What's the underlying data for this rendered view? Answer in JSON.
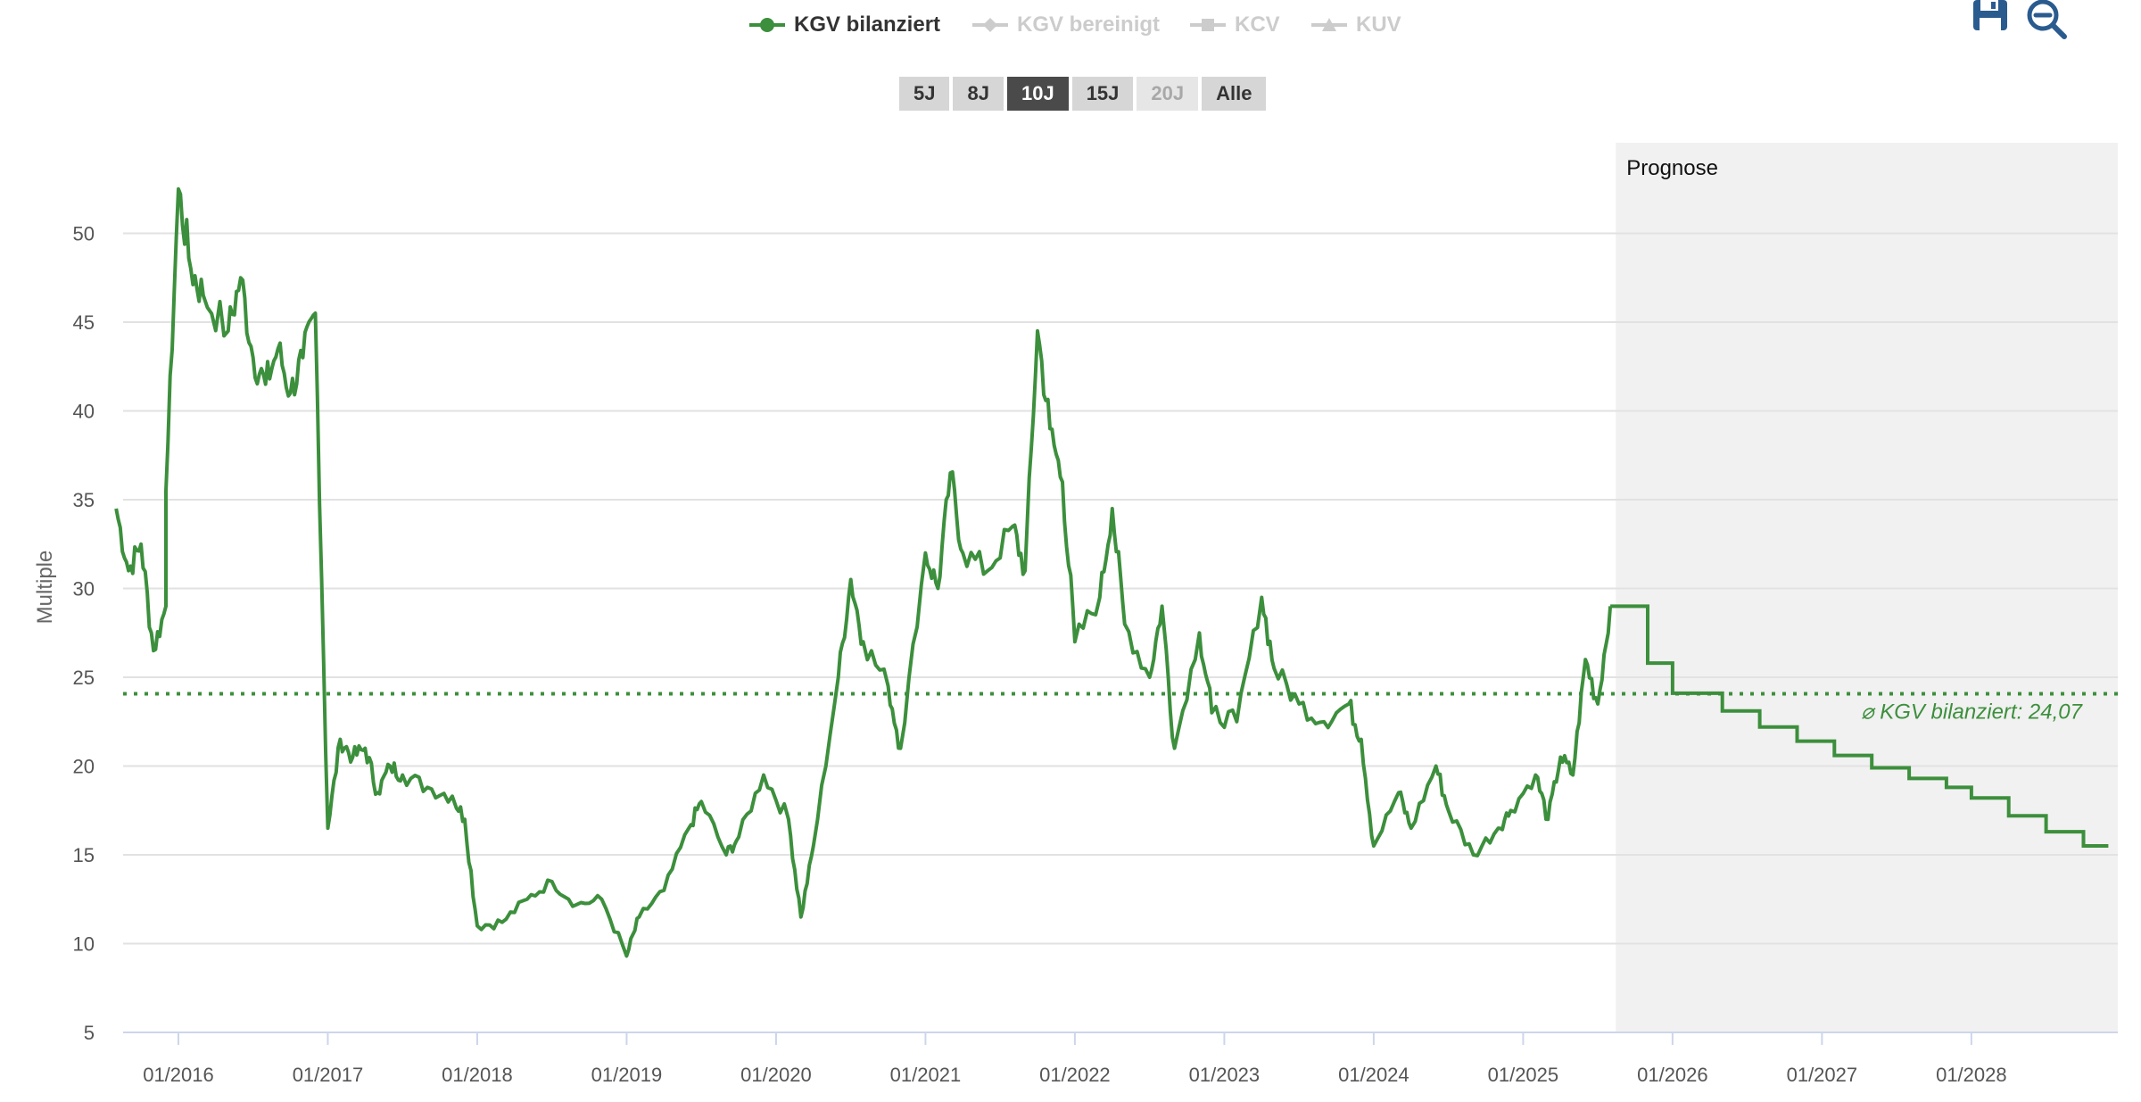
{
  "legend": {
    "items": [
      {
        "label": "KGV bilanziert",
        "active": true,
        "icon": "circle-marker-icon"
      },
      {
        "label": "KGV bereinigt",
        "active": false,
        "icon": "diamond-marker-icon"
      },
      {
        "label": "KCV",
        "active": false,
        "icon": "square-marker-icon"
      },
      {
        "label": "KUV",
        "active": false,
        "icon": "triangle-marker-icon"
      }
    ]
  },
  "range_buttons": [
    {
      "label": "5J",
      "state": "normal"
    },
    {
      "label": "8J",
      "state": "normal"
    },
    {
      "label": "10J",
      "state": "selected"
    },
    {
      "label": "15J",
      "state": "normal"
    },
    {
      "label": "20J",
      "state": "disabled"
    },
    {
      "label": "Alle",
      "state": "normal"
    }
  ],
  "tools": [
    {
      "name": "save-icon"
    },
    {
      "name": "zoom-out-icon"
    }
  ],
  "colors": {
    "series": "#3c8f3c",
    "forecast_band": "#f1f1f1",
    "grid": "#e2e2e2",
    "axis": "#ccd6eb",
    "button_selected": "#4a4a4a",
    "button_normal": "#d6d6d6"
  },
  "chart_data": {
    "type": "line",
    "ylabel": "Multiple",
    "ylim": [
      5,
      55
    ],
    "yticks": [
      5,
      10,
      15,
      20,
      25,
      30,
      35,
      40,
      45,
      50
    ],
    "xlim": [
      2015.63,
      2028.98
    ],
    "xticks": [
      "01/2016",
      "01/2017",
      "01/2018",
      "01/2019",
      "01/2020",
      "01/2021",
      "01/2022",
      "01/2023",
      "01/2024",
      "01/2025",
      "01/2026",
      "01/2027",
      "01/2028"
    ],
    "grid": true,
    "legend_position": "top-center",
    "forecast": {
      "label": "Prognose",
      "start": 2025.62
    },
    "average": {
      "label": "⌀ KGV bilanziert: 24,07",
      "value": 24.07
    },
    "series": [
      {
        "name": "KGV bilanziert",
        "historical": [
          [
            "2015-08",
            34.5
          ],
          [
            "2015-09",
            31.0
          ],
          [
            "2015-10",
            32.5
          ],
          [
            "2015-11",
            26.5
          ],
          [
            "2015-12",
            29.0
          ],
          [
            "2015-12",
            35.5
          ],
          [
            "2016-01",
            52.5
          ],
          [
            "2016-02",
            48.0
          ],
          [
            "2016-03",
            46.5
          ],
          [
            "2016-05",
            44.5
          ],
          [
            "2016-06",
            47.5
          ],
          [
            "2016-07",
            43.0
          ],
          [
            "2016-08",
            41.5
          ],
          [
            "2016-09",
            43.5
          ],
          [
            "2016-10",
            41.0
          ],
          [
            "2016-11",
            43.0
          ],
          [
            "2016-12",
            45.5
          ],
          [
            "2017-01",
            16.5
          ],
          [
            "2017-02",
            21.5
          ],
          [
            "2017-03",
            20.5
          ],
          [
            "2017-04",
            21.0
          ],
          [
            "2017-05",
            18.5
          ],
          [
            "2017-06",
            20.0
          ],
          [
            "2017-07",
            19.5
          ],
          [
            "2017-09",
            18.8
          ],
          [
            "2017-11",
            18.3
          ],
          [
            "2017-12",
            17.0
          ],
          [
            "2018-01",
            11.0
          ],
          [
            "2018-03",
            11.2
          ],
          [
            "2018-05",
            12.5
          ],
          [
            "2018-07",
            13.5
          ],
          [
            "2018-09",
            12.2
          ],
          [
            "2018-11",
            12.5
          ],
          [
            "2019-01",
            9.3
          ],
          [
            "2019-02",
            11.5
          ],
          [
            "2019-04",
            13.0
          ],
          [
            "2019-06",
            16.5
          ],
          [
            "2019-07",
            18.0
          ],
          [
            "2019-09",
            15.0
          ],
          [
            "2019-10",
            16.0
          ],
          [
            "2019-12",
            19.5
          ],
          [
            "2020-02",
            17.0
          ],
          [
            "2020-03",
            11.5
          ],
          [
            "2020-04",
            15.5
          ],
          [
            "2020-06",
            25.0
          ],
          [
            "2020-07",
            30.5
          ],
          [
            "2020-08",
            27.0
          ],
          [
            "2020-10",
            24.5
          ],
          [
            "2020-11",
            21.0
          ],
          [
            "2021-01",
            32.0
          ],
          [
            "2021-02",
            30.0
          ],
          [
            "2021-03",
            36.5
          ],
          [
            "2021-04",
            32.0
          ],
          [
            "2021-06",
            31.0
          ],
          [
            "2021-08",
            33.5
          ],
          [
            "2021-09",
            31.0
          ],
          [
            "2021-10",
            44.5
          ],
          [
            "2021-11",
            39.0
          ],
          [
            "2021-12",
            36.0
          ],
          [
            "2022-01",
            27.0
          ],
          [
            "2022-03",
            29.5
          ],
          [
            "2022-04",
            34.5
          ],
          [
            "2022-05",
            28.0
          ],
          [
            "2022-07",
            25.0
          ],
          [
            "2022-08",
            29.0
          ],
          [
            "2022-09",
            21.0
          ],
          [
            "2022-11",
            27.5
          ],
          [
            "2022-12",
            23.0
          ],
          [
            "2023-02",
            22.5
          ],
          [
            "2023-04",
            29.5
          ],
          [
            "2023-05",
            25.5
          ],
          [
            "2023-07",
            23.5
          ],
          [
            "2023-09",
            22.5
          ],
          [
            "2023-11",
            23.5
          ],
          [
            "2023-12",
            21.5
          ],
          [
            "2024-01",
            15.5
          ],
          [
            "2024-03",
            18.5
          ],
          [
            "2024-04",
            16.5
          ],
          [
            "2024-06",
            20.0
          ],
          [
            "2024-07",
            17.5
          ],
          [
            "2024-09",
            15.0
          ],
          [
            "2024-11",
            16.5
          ],
          [
            "2024-12",
            17.5
          ],
          [
            "2025-02",
            19.5
          ],
          [
            "2025-03",
            17.0
          ],
          [
            "2025-04",
            20.5
          ],
          [
            "2025-05",
            19.5
          ],
          [
            "2025-06",
            26.0
          ],
          [
            "2025-07",
            23.5
          ],
          [
            "2025-08",
            29.0
          ]
        ],
        "forecast_steps": [
          [
            "2025-08",
            29.0
          ],
          [
            "2025-11",
            25.8
          ],
          [
            "2026-01",
            24.1
          ],
          [
            "2026-05",
            23.1
          ],
          [
            "2026-08",
            22.2
          ],
          [
            "2026-11",
            21.4
          ],
          [
            "2027-02",
            20.6
          ],
          [
            "2027-05",
            19.9
          ],
          [
            "2027-08",
            19.3
          ],
          [
            "2027-11",
            18.8
          ],
          [
            "2028-01",
            18.2
          ],
          [
            "2028-04",
            17.2
          ],
          [
            "2028-07",
            16.3
          ],
          [
            "2028-10",
            15.5
          ],
          [
            "2028-12",
            15.5
          ]
        ]
      }
    ]
  }
}
